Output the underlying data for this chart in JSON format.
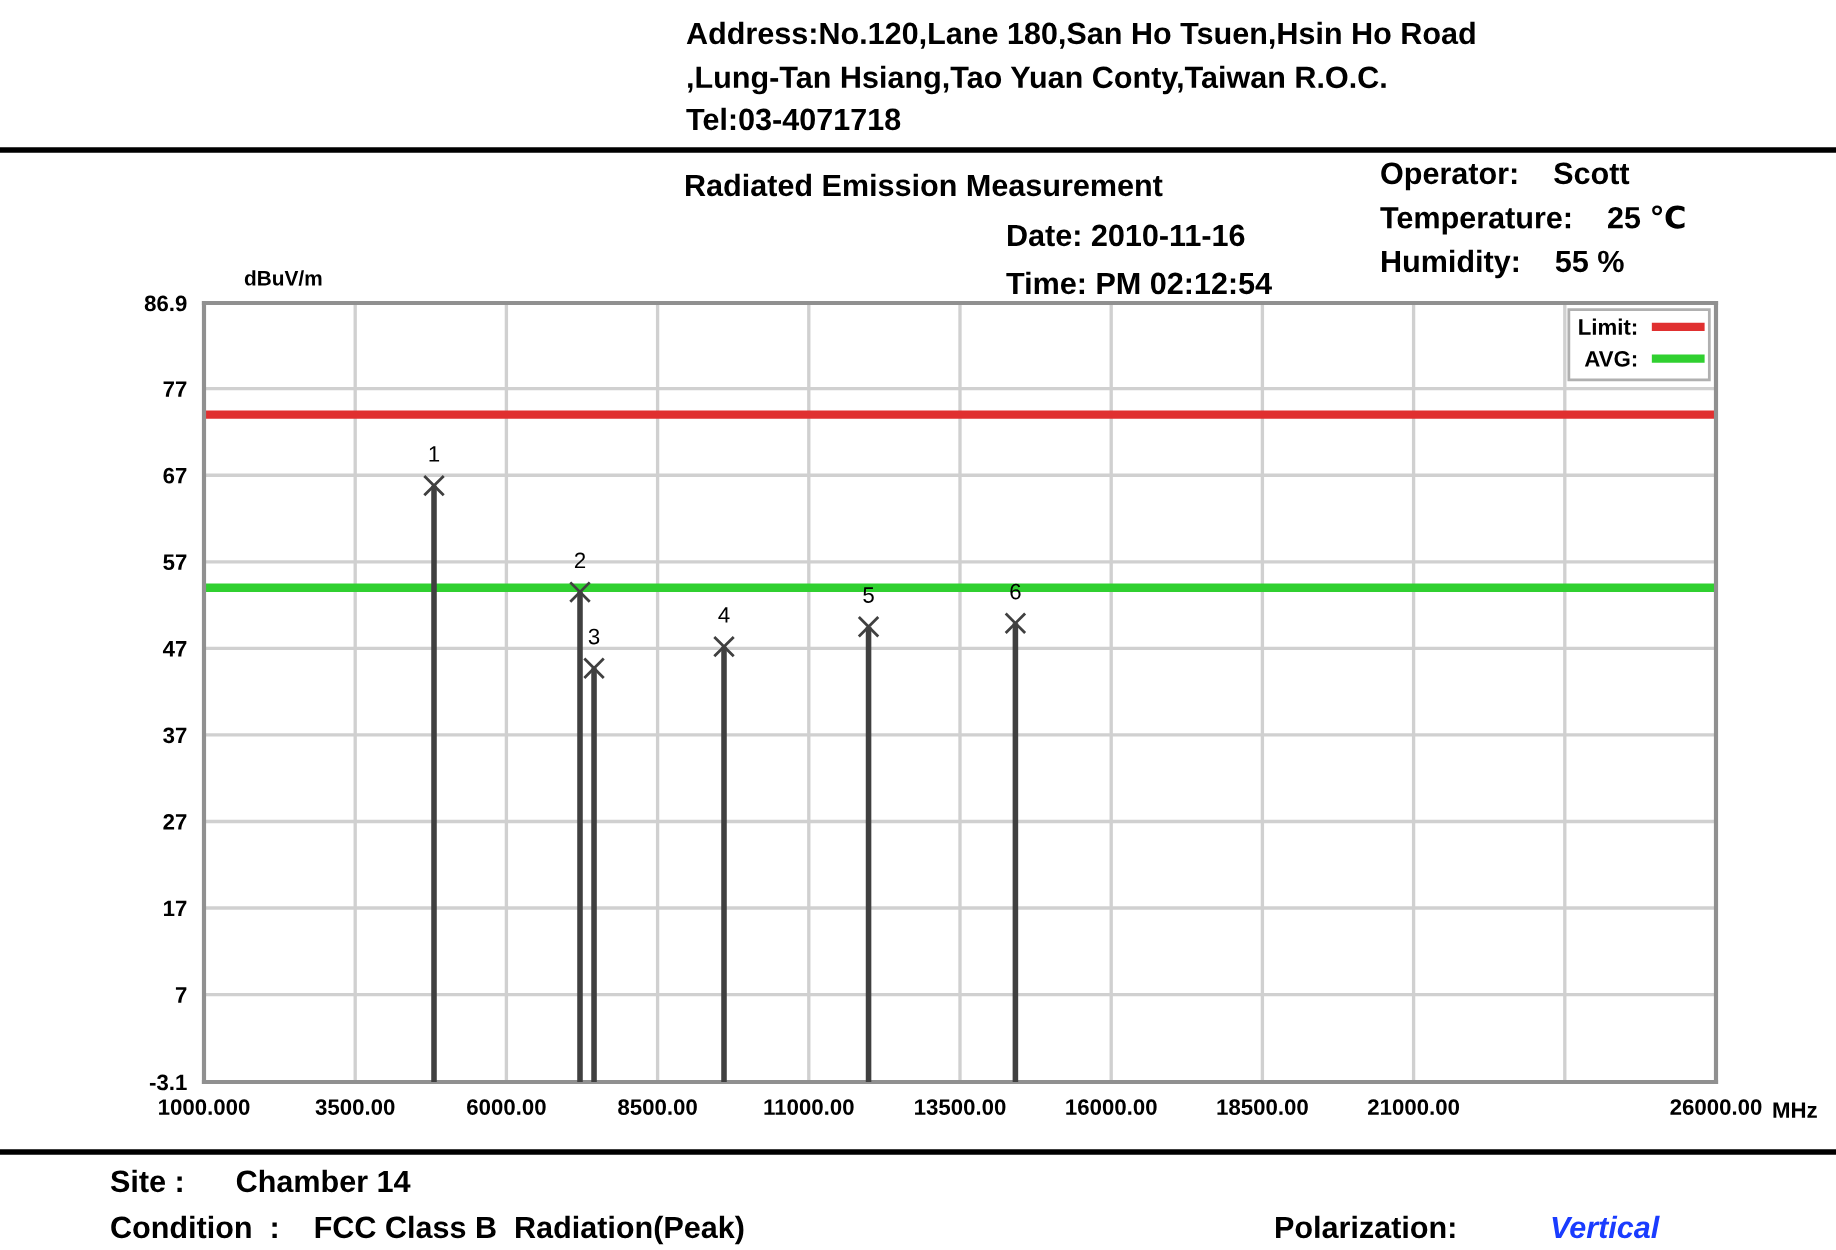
{
  "chart_data": {
    "type": "lollipop",
    "title": "Radiated Emission Measurement",
    "ylabel": "dBuV/m",
    "xlabel": "MHz",
    "x": [
      4803,
      7217,
      7449,
      9598,
      11988,
      14416
    ],
    "series": [
      {
        "color": "#404040",
        "values": [
          65.8,
          53.5,
          44.7,
          47.2,
          49.5,
          49.9
        ]
      }
    ],
    "marker": "cross",
    "xlim": [
      1000,
      26000
    ],
    "xticks": [
      {
        "value": 1000,
        "label": "1000.000"
      },
      {
        "value": 3500,
        "label": "3500.00"
      },
      {
        "value": 6000,
        "label": "6000.00"
      },
      {
        "value": 8500,
        "label": "8500.00"
      },
      {
        "value": 11000,
        "label": "11000.00"
      },
      {
        "value": 13500,
        "label": "13500.00"
      },
      {
        "value": 16000,
        "label": "16000.00"
      },
      {
        "value": 18500,
        "label": "18500.00"
      },
      {
        "value": 21000,
        "label": "21000.00"
      },
      {
        "value": 23500,
        "label": null
      },
      {
        "value": 26000,
        "label": "26000.00"
      }
    ],
    "ylim": [
      -3.1,
      86.9
    ],
    "yticks": [
      -3.1,
      7,
      17,
      27,
      37,
      47,
      57,
      67,
      77,
      86.9
    ],
    "grid": true,
    "legend": "top right",
    "ref_lines": [
      {
        "axis": "y",
        "value": 74,
        "label": "Limit:",
        "color": "#e03030"
      },
      {
        "axis": "y",
        "value": 54,
        "label": "AVG:",
        "color": "#30d030"
      }
    ],
    "annotations": [
      {
        "text": "1",
        "x": 4803,
        "y": 65.8
      },
      {
        "text": "2",
        "x": 7217,
        "y": 53.5
      },
      {
        "text": "3",
        "x": 7449,
        "y": 44.7
      },
      {
        "text": "4",
        "x": 9598,
        "y": 47.2
      },
      {
        "text": "5",
        "x": 11988,
        "y": 49.5
      },
      {
        "text": "6",
        "x": 14416,
        "y": 49.9
      },
      "Address:No.120,Lane 180,San Ho Tsuen,Hsin Ho Road",
      ",Lung-Tan Hsiang,Tao Yuan Conty,Taiwan R.O.C.",
      "Tel:03-4071718",
      "Operator:    Scott",
      "Temperature:    25 ℃",
      "Humidity:    55 %",
      "Date: 2010-11-16",
      "Time: PM 02:12:54",
      "Site :      Chamber 14",
      "Condition  :    FCC Class B  Radiation(Peak)",
      "Polarization:",
      "Vertical"
    ]
  }
}
